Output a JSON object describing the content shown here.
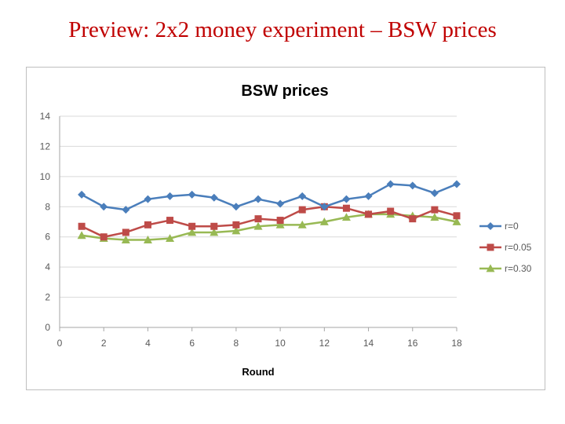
{
  "slide": {
    "title": "Preview: 2x2 money experiment – BSW prices"
  },
  "colors": {
    "title": "#c00000",
    "grid": "#d9d9d9",
    "axis": "#a6a6a6"
  },
  "chart_data": {
    "type": "line",
    "title": "BSW prices",
    "xlabel": "Round",
    "ylabel": "",
    "xlim": [
      0,
      18
    ],
    "ylim": [
      0,
      14
    ],
    "xticks": [
      0,
      2,
      4,
      6,
      8,
      10,
      12,
      14,
      16,
      18
    ],
    "yticks": [
      0,
      2,
      4,
      6,
      8,
      10,
      12,
      14
    ],
    "grid": "horizontal",
    "legend": "right",
    "x": [
      1,
      2,
      3,
      4,
      5,
      6,
      7,
      8,
      9,
      10,
      11,
      12,
      13,
      14,
      15,
      16,
      17,
      18
    ],
    "series": [
      {
        "name": "r=0",
        "color": "#4a7ebb",
        "marker": "diamond",
        "values": [
          8.8,
          8.0,
          7.8,
          8.5,
          8.7,
          8.8,
          8.6,
          8.0,
          8.5,
          8.2,
          8.7,
          8.0,
          8.5,
          8.7,
          9.5,
          9.4,
          8.9,
          9.5
        ]
      },
      {
        "name": "r=0.05",
        "color": "#be4b48",
        "marker": "square",
        "values": [
          6.7,
          6.0,
          6.3,
          6.8,
          7.1,
          6.7,
          6.7,
          6.8,
          7.2,
          7.1,
          7.8,
          8.0,
          7.9,
          7.5,
          7.7,
          7.2,
          7.8,
          7.4
        ]
      },
      {
        "name": "r=0.30",
        "color": "#98b954",
        "marker": "triangle",
        "values": [
          6.1,
          5.9,
          5.8,
          5.8,
          5.9,
          6.3,
          6.3,
          6.4,
          6.7,
          6.8,
          6.8,
          7.0,
          7.3,
          7.5,
          7.5,
          7.4,
          7.3,
          7.0
        ]
      }
    ]
  }
}
